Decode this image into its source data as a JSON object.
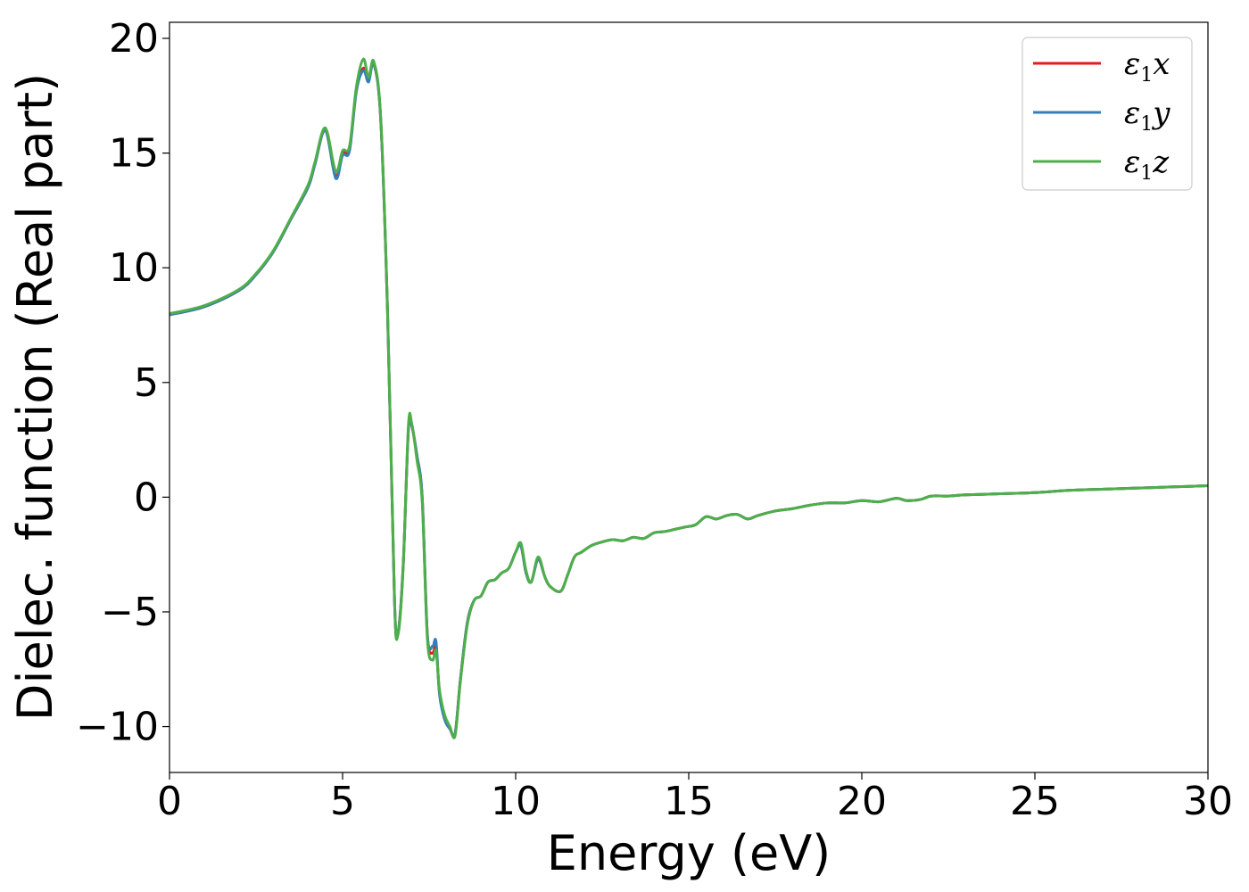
{
  "chart_data": {
    "type": "line",
    "title": "",
    "xlabel": "Energy (eV)",
    "ylabel": "Dielec. function (Real part)",
    "xlim": [
      0,
      30
    ],
    "ylim": [
      -12,
      20.7
    ],
    "xticks": [
      0,
      5,
      10,
      15,
      20,
      25,
      30
    ],
    "xtick_labels": [
      "0",
      "5",
      "10",
      "15",
      "20",
      "25",
      "30"
    ],
    "yticks": [
      -10,
      -5,
      0,
      5,
      10,
      15,
      20
    ],
    "ytick_labels": [
      "−10",
      "−5",
      "0",
      "5",
      "10",
      "15",
      "20"
    ],
    "grid": false,
    "legend_position": "top-right",
    "series": [
      {
        "name": "ε1x",
        "legend_base": "ε",
        "legend_sub": "1",
        "legend_var": "x",
        "color": "#e41a1c",
        "x": [
          0,
          1,
          2,
          2.5,
          3,
          3.5,
          4,
          4.2,
          4.5,
          4.8,
          5.0,
          5.2,
          5.4,
          5.6,
          5.75,
          5.9,
          6.1,
          6.3,
          6.5,
          6.6,
          6.75,
          6.9,
          7.0,
          7.15,
          7.3,
          7.45,
          7.6,
          7.7,
          7.8,
          7.95,
          8.1,
          8.25,
          8.4,
          8.6,
          8.8,
          9.0,
          9.2,
          9.4,
          9.6,
          9.8,
          10.0,
          10.15,
          10.3,
          10.45,
          10.65,
          10.85,
          11.0,
          11.3,
          11.5,
          11.7,
          11.9,
          12.2,
          12.5,
          12.8,
          13.1,
          13.4,
          13.7,
          14.0,
          14.3,
          14.6,
          14.9,
          15.2,
          15.5,
          15.8,
          16.1,
          16.4,
          16.7,
          17.0,
          17.5,
          18.0,
          18.5,
          19.0,
          19.5,
          20.0,
          20.5,
          21.0,
          21.3,
          21.7,
          22.0,
          22.5,
          23.0,
          24.0,
          25.0,
          26.0,
          27.0,
          28.0,
          29.0,
          30.0
        ],
        "y": [
          7.95,
          8.3,
          9.0,
          9.7,
          10.7,
          12.1,
          13.5,
          14.5,
          16.0,
          14.0,
          15.0,
          15.2,
          17.8,
          18.7,
          18.2,
          18.9,
          16.5,
          8.0,
          -4.5,
          -5.9,
          -3.0,
          2.9,
          3.1,
          1.8,
          0.0,
          -6.0,
          -6.8,
          -6.5,
          -8.5,
          -9.6,
          -10.1,
          -10.3,
          -8.0,
          -5.5,
          -4.5,
          -4.3,
          -3.7,
          -3.6,
          -3.3,
          -3.1,
          -2.4,
          -2.1,
          -3.3,
          -3.7,
          -2.7,
          -3.5,
          -3.9,
          -4.1,
          -3.4,
          -2.6,
          -2.4,
          -2.1,
          -1.95,
          -1.85,
          -1.9,
          -1.75,
          -1.8,
          -1.55,
          -1.5,
          -1.4,
          -1.3,
          -1.2,
          -0.85,
          -0.95,
          -0.8,
          -0.75,
          -0.95,
          -0.8,
          -0.6,
          -0.5,
          -0.35,
          -0.25,
          -0.25,
          -0.15,
          -0.2,
          -0.05,
          -0.15,
          -0.1,
          0.05,
          0.05,
          0.1,
          0.15,
          0.2,
          0.3,
          0.35,
          0.4,
          0.45,
          0.5
        ]
      },
      {
        "name": "ε1y",
        "legend_base": "ε",
        "legend_sub": "1",
        "legend_var": "y",
        "color": "#377eb8",
        "x": [
          0,
          1,
          2,
          2.5,
          3,
          3.5,
          4,
          4.2,
          4.5,
          4.8,
          5.0,
          5.2,
          5.4,
          5.6,
          5.75,
          5.9,
          6.1,
          6.3,
          6.5,
          6.6,
          6.75,
          6.9,
          7.0,
          7.15,
          7.3,
          7.45,
          7.6,
          7.7,
          7.8,
          7.95,
          8.1,
          8.25,
          8.4,
          8.6,
          8.8,
          9.0,
          9.2,
          9.4,
          9.6,
          9.8,
          10.0,
          10.15,
          10.3,
          10.45,
          10.65,
          10.85,
          11.0,
          11.3,
          11.5,
          11.7,
          11.9,
          12.2,
          12.5,
          12.8,
          13.1,
          13.4,
          13.7,
          14.0,
          14.3,
          14.6,
          14.9,
          15.2,
          15.5,
          15.8,
          16.1,
          16.4,
          16.7,
          17.0,
          17.5,
          18.0,
          18.5,
          19.0,
          19.5,
          20.0,
          20.5,
          21.0,
          21.3,
          21.7,
          22.0,
          22.5,
          23.0,
          24.0,
          25.0,
          26.0,
          27.0,
          28.0,
          29.0,
          30.0
        ],
        "y": [
          7.95,
          8.3,
          9.0,
          9.7,
          10.7,
          12.1,
          13.5,
          14.5,
          16.0,
          13.9,
          14.9,
          15.1,
          17.7,
          18.6,
          18.1,
          18.9,
          16.5,
          8.0,
          -4.5,
          -5.9,
          -3.0,
          2.9,
          3.1,
          1.8,
          0.0,
          -6.0,
          -6.5,
          -6.3,
          -8.6,
          -9.7,
          -10.1,
          -10.3,
          -8.0,
          -5.5,
          -4.5,
          -4.3,
          -3.7,
          -3.6,
          -3.3,
          -3.1,
          -2.4,
          -2.1,
          -3.3,
          -3.7,
          -2.7,
          -3.5,
          -3.9,
          -4.1,
          -3.4,
          -2.6,
          -2.4,
          -2.1,
          -1.95,
          -1.85,
          -1.9,
          -1.75,
          -1.8,
          -1.55,
          -1.5,
          -1.4,
          -1.3,
          -1.2,
          -0.85,
          -0.95,
          -0.8,
          -0.75,
          -0.95,
          -0.8,
          -0.6,
          -0.5,
          -0.35,
          -0.25,
          -0.25,
          -0.15,
          -0.2,
          -0.05,
          -0.15,
          -0.1,
          0.05,
          0.05,
          0.1,
          0.15,
          0.2,
          0.3,
          0.35,
          0.4,
          0.45,
          0.5
        ]
      },
      {
        "name": "ε1z",
        "legend_base": "ε",
        "legend_sub": "1",
        "legend_var": "z",
        "color": "#4daf4a",
        "x": [
          0,
          1,
          2,
          2.5,
          3,
          3.5,
          4,
          4.2,
          4.5,
          4.8,
          5.0,
          5.2,
          5.4,
          5.6,
          5.75,
          5.9,
          6.1,
          6.3,
          6.5,
          6.6,
          6.75,
          6.9,
          7.0,
          7.15,
          7.3,
          7.45,
          7.6,
          7.7,
          7.8,
          7.95,
          8.1,
          8.25,
          8.4,
          8.6,
          8.8,
          9.0,
          9.2,
          9.4,
          9.6,
          9.8,
          10.0,
          10.15,
          10.3,
          10.45,
          10.65,
          10.85,
          11.0,
          11.3,
          11.5,
          11.7,
          11.9,
          12.2,
          12.5,
          12.8,
          13.1,
          13.4,
          13.7,
          14.0,
          14.3,
          14.6,
          14.9,
          15.2,
          15.5,
          15.8,
          16.1,
          16.4,
          16.7,
          17.0,
          17.5,
          18.0,
          18.5,
          19.0,
          19.5,
          20.0,
          20.5,
          21.0,
          21.3,
          21.7,
          22.0,
          22.5,
          23.0,
          24.0,
          25.0,
          26.0,
          27.0,
          28.0,
          29.0,
          30.0
        ],
        "y": [
          8.0,
          8.35,
          9.05,
          9.75,
          10.75,
          12.15,
          13.6,
          14.6,
          16.1,
          14.2,
          15.1,
          15.3,
          17.9,
          19.1,
          18.3,
          19.0,
          16.6,
          8.1,
          -4.4,
          -6.0,
          -3.1,
          3.1,
          3.2,
          1.6,
          -0.2,
          -6.2,
          -7.1,
          -6.7,
          -8.4,
          -9.5,
          -10.0,
          -10.4,
          -8.1,
          -5.6,
          -4.5,
          -4.3,
          -3.7,
          -3.6,
          -3.3,
          -3.1,
          -2.4,
          -2.0,
          -3.2,
          -3.7,
          -2.6,
          -3.5,
          -3.9,
          -4.1,
          -3.4,
          -2.6,
          -2.4,
          -2.1,
          -1.95,
          -1.85,
          -1.9,
          -1.75,
          -1.8,
          -1.55,
          -1.5,
          -1.4,
          -1.3,
          -1.2,
          -0.85,
          -0.95,
          -0.8,
          -0.75,
          -0.95,
          -0.8,
          -0.6,
          -0.5,
          -0.35,
          -0.25,
          -0.25,
          -0.15,
          -0.2,
          -0.05,
          -0.15,
          -0.1,
          0.05,
          0.05,
          0.1,
          0.15,
          0.2,
          0.3,
          0.35,
          0.4,
          0.45,
          0.5
        ]
      }
    ]
  }
}
